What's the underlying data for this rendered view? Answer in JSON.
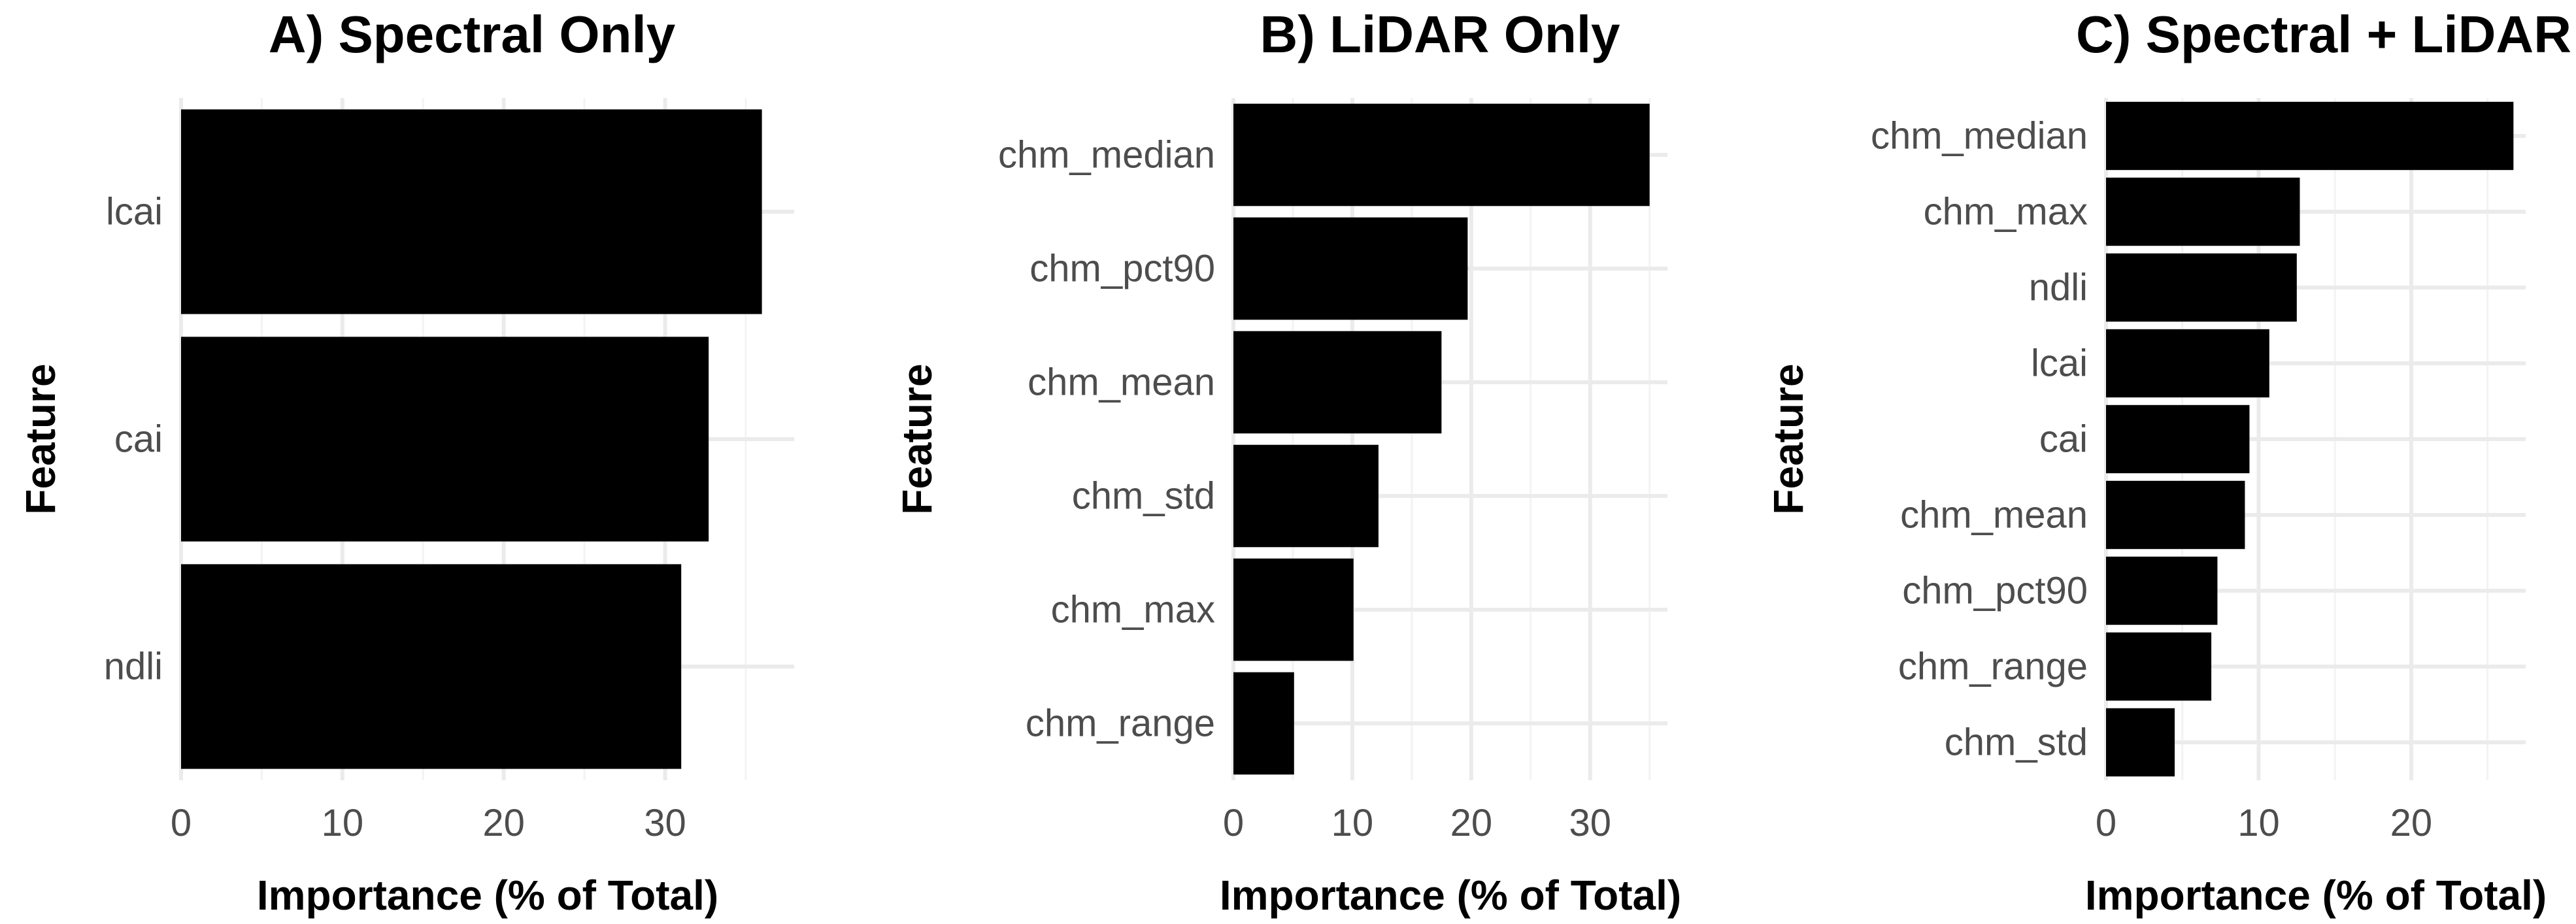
{
  "chart_data": [
    {
      "type": "bar",
      "orientation": "horizontal",
      "title": "A) Spectral Only",
      "xlabel": "Importance (% of Total)",
      "ylabel": "Feature",
      "categories": [
        "lcai",
        "cai",
        "ndli"
      ],
      "values": [
        36.0,
        32.7,
        31.0
      ],
      "xlim": [
        0,
        38
      ],
      "xticks": [
        0,
        10,
        20,
        30
      ],
      "bar_color": "#000000",
      "grid": true
    },
    {
      "type": "bar",
      "orientation": "horizontal",
      "title": "B) LiDAR Only",
      "xlabel": "Importance (% of Total)",
      "ylabel": "Feature",
      "categories": [
        "chm_median",
        "chm_pct90",
        "chm_mean",
        "chm_std",
        "chm_max",
        "chm_range"
      ],
      "values": [
        35.0,
        19.7,
        17.5,
        12.2,
        10.1,
        5.1
      ],
      "xlim": [
        0,
        36.5
      ],
      "xticks": [
        0,
        10,
        20,
        30
      ],
      "bar_color": "#000000",
      "grid": true
    },
    {
      "type": "bar",
      "orientation": "horizontal",
      "title": "C) Spectral + LiDAR",
      "xlabel": "Importance (% of Total)",
      "ylabel": "Feature",
      "categories": [
        "chm_median",
        "chm_max",
        "ndli",
        "lcai",
        "cai",
        "chm_mean",
        "chm_pct90",
        "chm_range",
        "chm_std"
      ],
      "values": [
        26.7,
        12.7,
        12.5,
        10.7,
        9.4,
        9.1,
        7.3,
        6.9,
        4.5
      ],
      "xlim": [
        0,
        27.5
      ],
      "xticks": [
        0,
        10,
        20
      ],
      "bar_color": "#000000",
      "grid": true
    }
  ]
}
